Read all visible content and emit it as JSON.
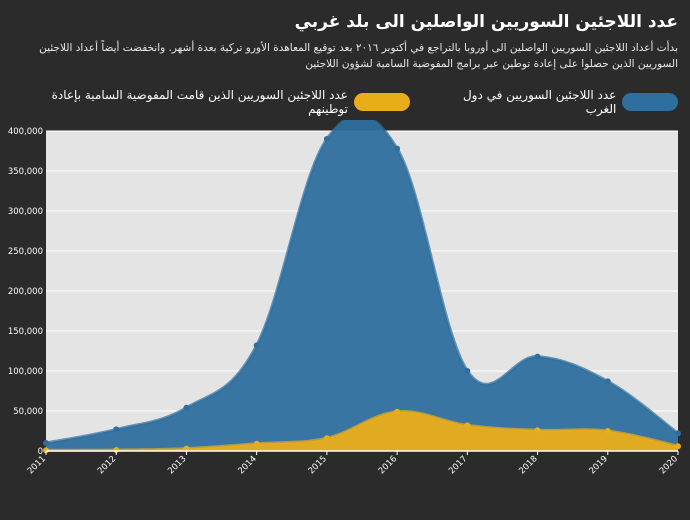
{
  "header": {
    "title": "عدد اللاجئين السوريين الواصلين الى بلد غربي",
    "subtitle": "بدأت أعداد اللاجئين السوريين الواصلين الى أوروبا بالتراجع في أكتوبر ٢٠١٦ بعد توقيع المعاهدة الأورو تركية بعدة أشهر. وانخفضت أيضاً أعداد اللاجئين السوريين الذين حصلوا على إعادة توطين عبر برامج المفوضية السامية لشؤون اللاجئين"
  },
  "colors": {
    "background": "#2b2b2b",
    "plot_background": "#e4e4e4",
    "series1": "#2e6f9e",
    "series2": "#e9ad1a"
  },
  "chart_data": {
    "type": "area",
    "title": "عدد اللاجئين السوريين الواصلين الى بلد غربي",
    "x": [
      "2011",
      "2012",
      "2013",
      "2014",
      "2015",
      "2016",
      "2017",
      "2018",
      "2019",
      "2020"
    ],
    "series": [
      {
        "name": "عدد اللاجئين السوريين في دول الغرب",
        "values": [
          10000,
          27000,
          54000,
          132000,
          390000,
          378000,
          100000,
          118000,
          87000,
          22000
        ]
      },
      {
        "name": "عدد اللاجئين السوريين الذين قامت المفوضية السامية بإعادة توطينهم",
        "values": [
          1000,
          1200,
          3000,
          9000,
          16000,
          49000,
          32000,
          26000,
          25000,
          6000
        ]
      }
    ],
    "yticks": [
      "0",
      "50,000",
      "100,000",
      "150,000",
      "200,000",
      "250,000",
      "300,000",
      "350,000",
      "400,000"
    ],
    "ylim": [
      0,
      400000
    ],
    "grid": true,
    "legend": "top"
  }
}
